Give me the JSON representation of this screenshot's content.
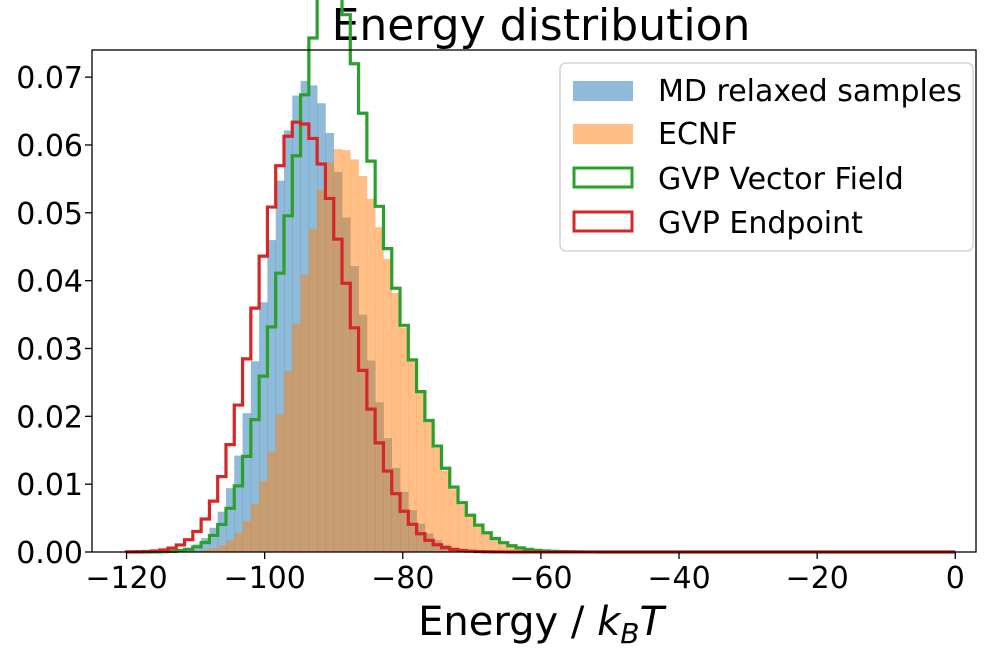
{
  "chart_data": {
    "type": "histogram",
    "title": "Energy distribution",
    "xlabel_prefix": "Energy / ",
    "xlabel_math": "k",
    "xlabel_sub": "B",
    "xlabel_math2": "T",
    "xlim": [
      -125,
      3
    ],
    "ylim": [
      0,
      0.074
    ],
    "xticks": [
      -120,
      -100,
      -80,
      -60,
      -40,
      -20,
      0
    ],
    "xtick_labels": [
      "−120",
      "−100",
      "−80",
      "−60",
      "−40",
      "−20",
      "0"
    ],
    "yticks": [
      0,
      0.01,
      0.02,
      0.03,
      0.04,
      0.05,
      0.06,
      0.07
    ],
    "ytick_labels": [
      "0.00",
      "0.01",
      "0.02",
      "0.03",
      "0.04",
      "0.05",
      "0.06",
      "0.07"
    ],
    "bin_edges_range": [
      -120,
      0
    ],
    "bin_width": 1.2,
    "legend": {
      "location": "upper right"
    },
    "series": [
      {
        "name": "MD relaxed samples",
        "style": "filled",
        "color": "#1f77b4",
        "opacity": 0.5,
        "peaks": [
          {
            "mu": -94,
            "sl": 5.5,
            "sr": 7.0,
            "h": 0.0695
          }
        ]
      },
      {
        "name": "ECNF",
        "style": "filled",
        "color": "#ff7f0e",
        "opacity": 0.5,
        "peaks": [
          {
            "mu": -89,
            "sl": 6.0,
            "sr": 8.5,
            "h": 0.0595
          }
        ]
      },
      {
        "name": "GVP Vector Field",
        "style": "step",
        "color": "#2ca02c",
        "peaks": [
          {
            "mu": -94,
            "sl": 5.5,
            "sr": 5.0,
            "h": 0.0475
          },
          {
            "mu": -88.5,
            "sl": 4.0,
            "sr": 8.5,
            "h": 0.055
          }
        ]
      },
      {
        "name": "GVP Endpoint",
        "style": "step",
        "color": "#d62728",
        "peaks": [
          {
            "mu": -95,
            "sl": 6.0,
            "sr": 7.0,
            "h": 0.0635
          }
        ]
      }
    ]
  }
}
